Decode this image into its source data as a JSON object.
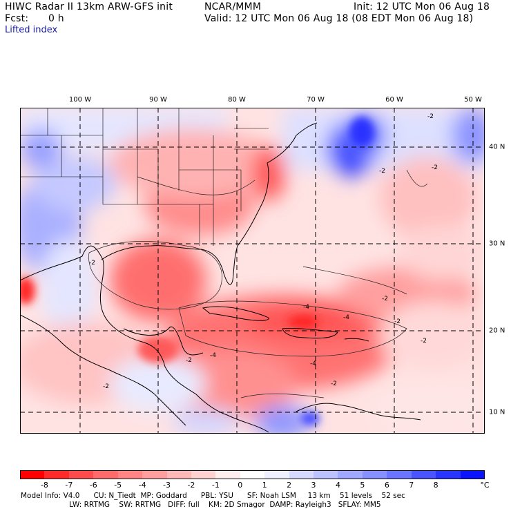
{
  "header": {
    "title_left": "HIWC Radar II 13km ARW-GFS init",
    "fcst_label": "Fcst:",
    "fcst_value": "0 h",
    "org": "NCAR/MMM",
    "init": "Init: 12 UTC Mon 06 Aug 18",
    "valid": "Valid: 12 UTC Mon 06 Aug 18 (08 EDT Mon 06 Aug 18)",
    "field": "Lifted index"
  },
  "longitude_labels": [
    "100 W",
    "90 W",
    "80 W",
    "70 W",
    "60 W",
    "50 W"
  ],
  "latitude_labels": [
    "40 N",
    "30 N",
    "20 N",
    "10 N"
  ],
  "contour_labels": [
    "-2",
    "-2",
    "-2",
    "-2",
    "-2",
    "-2",
    "-2",
    "-2",
    "-4",
    "-4",
    "-4",
    "-4",
    "-2",
    "-2"
  ],
  "colorbar": {
    "ticks": [
      "-8",
      "-7",
      "-6",
      "-5",
      "-4",
      "-3",
      "-2",
      "-1",
      "0",
      "1",
      "2",
      "3",
      "4",
      "5",
      "6",
      "7",
      "8"
    ],
    "unit": "°C",
    "colors": [
      "#ff0000",
      "#ff2b2b",
      "#ff4b4b",
      "#ff6a6a",
      "#ff8585",
      "#ff9e9e",
      "#ffb8b8",
      "#ffd2d2",
      "#ffeeee",
      "#ffffff",
      "#eef0ff",
      "#d6d9ff",
      "#bcc1ff",
      "#a1a8ff",
      "#8790ff",
      "#6b75ff",
      "#4b55ff",
      "#2a34ff",
      "#0a14ff"
    ]
  },
  "footer": {
    "line1": "Model Info: V4.0      CU: N_Tiedt  MP: Goddard      PBL: YSU      SF: Noah LSM     13 km    51 levels    52 sec",
    "line2": "                     LW: RRTMG    SW: RRTMG   DIFF: full    KM: 2D Smagor  DAMP: Rayleigh3   SFLAY: MM5"
  }
}
